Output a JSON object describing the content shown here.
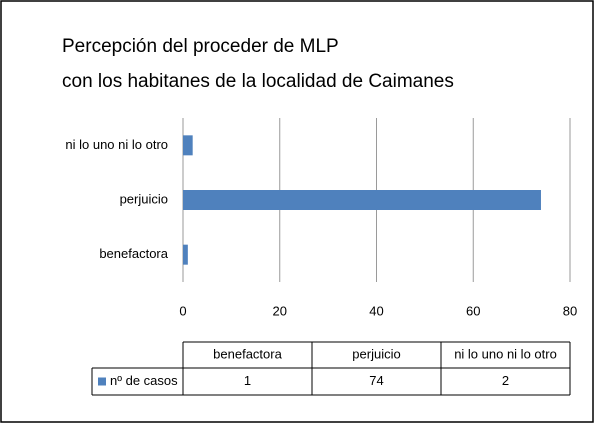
{
  "chart_data": {
    "type": "hbar",
    "title": [
      "Percepción del proceder de MLP",
      "con los habitanes de la localidad de Caimanes"
    ],
    "categories": [
      "benefactora",
      "perjuicio",
      "ni lo uno ni lo otro"
    ],
    "series": [
      {
        "name": "nº de casos",
        "color": "#4f81bd",
        "values": [
          1,
          74,
          2
        ]
      }
    ],
    "xlim": [
      0,
      80
    ],
    "xticks": [
      0,
      20,
      40,
      60,
      80
    ],
    "grid": true,
    "data_table": true
  }
}
